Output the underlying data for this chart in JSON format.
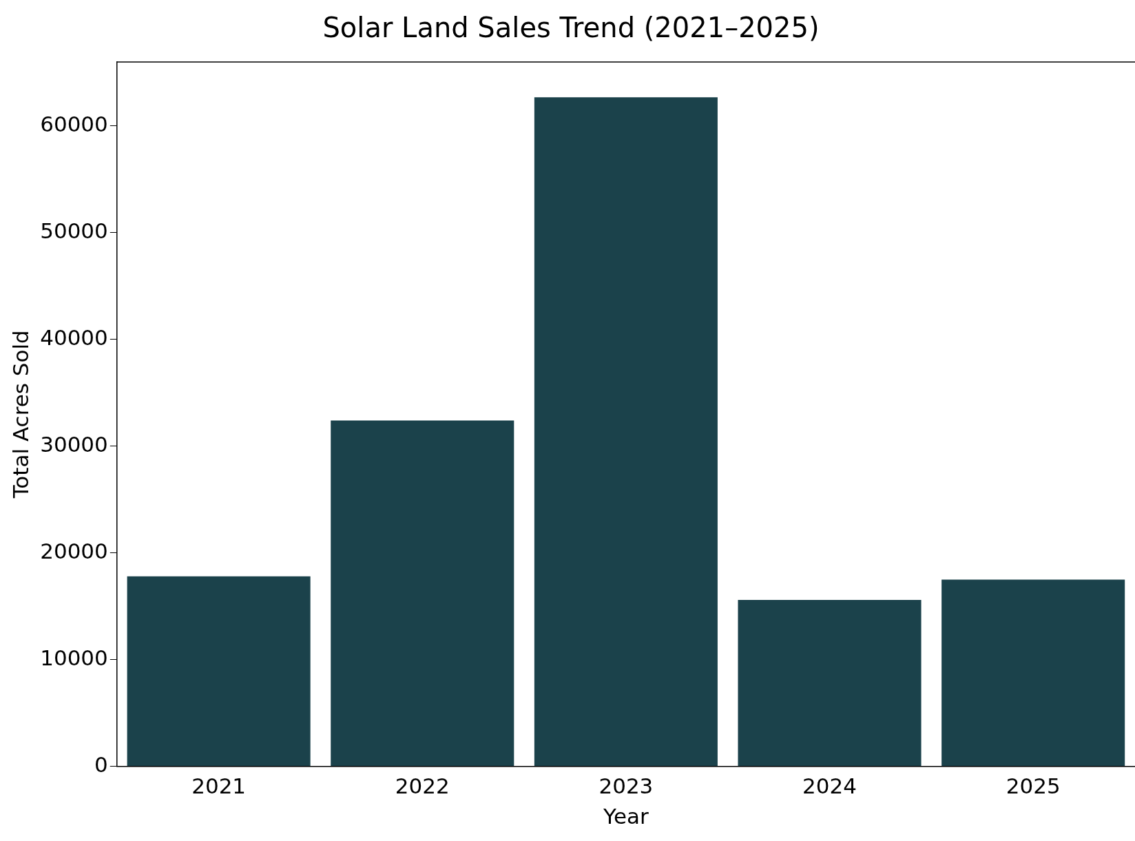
{
  "chart_data": {
    "type": "bar",
    "title": "Solar Land Sales Trend (2021–2025)",
    "xlabel": "Year",
    "ylabel": "Total Acres Sold",
    "categories": [
      "2021",
      "2022",
      "2023",
      "2024",
      "2025"
    ],
    "values": [
      17800,
      32400,
      62700,
      15600,
      17500
    ],
    "color": "#1b424b",
    "ylim": [
      0,
      66000
    ],
    "yticks": [
      0,
      10000,
      20000,
      30000,
      40000,
      50000,
      60000
    ],
    "grid": false,
    "legend": false
  }
}
